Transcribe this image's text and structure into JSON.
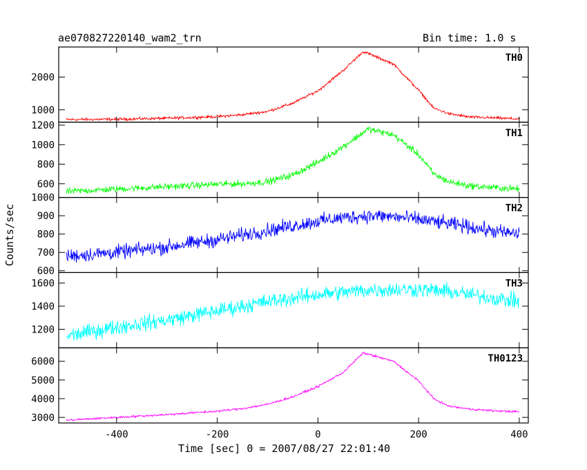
{
  "header": {
    "title": "ae070827220140_wam2_trn",
    "bin_time": "Bin time: 1.0 s"
  },
  "chart_data": {
    "type": "line",
    "xlabel": "Time [sec] 0 = 2007/08/27 22:01:40",
    "ylabel": "Counts/sec",
    "xlim": [
      -515,
      418
    ],
    "x_ticks": [
      -400,
      -200,
      0,
      200,
      400
    ],
    "x_range_data": [
      -500,
      400
    ],
    "bin_time_s": 1.0,
    "grid": false,
    "panels": [
      {
        "name": "TH0",
        "color": "#ff0000",
        "ylim": [
          620,
          2920
        ],
        "y_ticks": [
          1000,
          2000
        ],
        "noise": 35,
        "profile": [
          [
            -500,
            700
          ],
          [
            -400,
            710
          ],
          [
            -300,
            740
          ],
          [
            -200,
            790
          ],
          [
            -150,
            850
          ],
          [
            -100,
            950
          ],
          [
            -50,
            1200
          ],
          [
            0,
            1580
          ],
          [
            50,
            2200
          ],
          [
            90,
            2780
          ],
          [
            100,
            2720
          ],
          [
            150,
            2400
          ],
          [
            200,
            1600
          ],
          [
            230,
            1050
          ],
          [
            260,
            880
          ],
          [
            300,
            780
          ],
          [
            350,
            750
          ],
          [
            400,
            720
          ]
        ]
      },
      {
        "name": "TH1",
        "color": "#00ff00",
        "ylim": [
          460,
          1230
        ],
        "y_ticks": [
          600,
          800,
          1000,
          1200
        ],
        "noise": 28,
        "profile": [
          [
            -500,
            520
          ],
          [
            -400,
            545
          ],
          [
            -300,
            570
          ],
          [
            -200,
            595
          ],
          [
            -150,
            600
          ],
          [
            -100,
            620
          ],
          [
            -50,
            690
          ],
          [
            0,
            820
          ],
          [
            50,
            980
          ],
          [
            100,
            1160
          ],
          [
            150,
            1100
          ],
          [
            200,
            900
          ],
          [
            230,
            700
          ],
          [
            260,
            620
          ],
          [
            300,
            580
          ],
          [
            350,
            560
          ],
          [
            400,
            545
          ]
        ]
      },
      {
        "name": "TH2",
        "color": "#0000ff",
        "ylim": [
          590,
          1000
        ],
        "y_ticks": [
          600,
          700,
          800,
          900,
          1000
        ],
        "noise": 32,
        "profile": [
          [
            -500,
            680
          ],
          [
            -400,
            700
          ],
          [
            -300,
            730
          ],
          [
            -200,
            770
          ],
          [
            -100,
            820
          ],
          [
            0,
            870
          ],
          [
            50,
            890
          ],
          [
            100,
            900
          ],
          [
            150,
            895
          ],
          [
            200,
            880
          ],
          [
            250,
            860
          ],
          [
            300,
            840
          ],
          [
            350,
            815
          ],
          [
            400,
            800
          ]
        ]
      },
      {
        "name": "TH3",
        "color": "#00ffff",
        "ylim": [
          1040,
          1690
        ],
        "y_ticks": [
          1200,
          1400,
          1600
        ],
        "noise": 55,
        "profile": [
          [
            -500,
            1140
          ],
          [
            -400,
            1220
          ],
          [
            -300,
            1280
          ],
          [
            -200,
            1360
          ],
          [
            -100,
            1440
          ],
          [
            0,
            1500
          ],
          [
            50,
            1520
          ],
          [
            100,
            1540
          ],
          [
            200,
            1545
          ],
          [
            250,
            1530
          ],
          [
            300,
            1500
          ],
          [
            350,
            1470
          ],
          [
            400,
            1440
          ]
        ]
      },
      {
        "name": "TH0123",
        "color": "#ff00ff",
        "ylim": [
          2700,
          6720
        ],
        "y_ticks": [
          3000,
          4000,
          5000,
          6000
        ],
        "noise": 45,
        "profile": [
          [
            -500,
            2850
          ],
          [
            -400,
            3000
          ],
          [
            -300,
            3150
          ],
          [
            -200,
            3330
          ],
          [
            -150,
            3470
          ],
          [
            -100,
            3700
          ],
          [
            -50,
            4100
          ],
          [
            0,
            4650
          ],
          [
            50,
            5400
          ],
          [
            90,
            6450
          ],
          [
            150,
            6000
          ],
          [
            200,
            4950
          ],
          [
            230,
            4000
          ],
          [
            260,
            3600
          ],
          [
            300,
            3450
          ],
          [
            350,
            3350
          ],
          [
            400,
            3300
          ]
        ]
      }
    ]
  }
}
